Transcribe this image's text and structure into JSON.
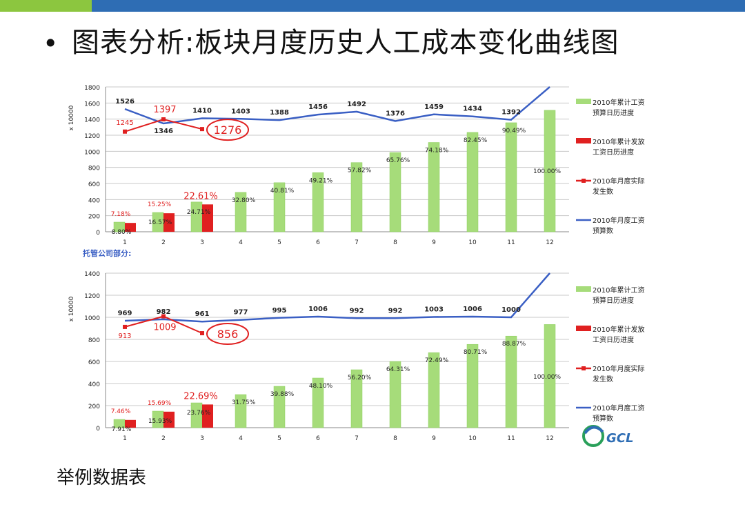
{
  "slide": {
    "bullet": "•",
    "title": "图表分析:板块月度历史人工成本变化曲线图",
    "subtitle": "举例数据表",
    "colors": {
      "top_bar_green": "#8cc63f",
      "top_bar_blue": "#2e6db4",
      "accent_red": "#e02020",
      "line_blue": "#3a5fc4",
      "bar_green": "#a6dc7a"
    }
  },
  "chart_data": [
    {
      "type": "bar",
      "title": "",
      "section_label": "",
      "ylabel": "x 10000",
      "ylim": [
        0,
        1800
      ],
      "yticks": [
        0,
        200,
        400,
        600,
        800,
        1000,
        1200,
        1400,
        1600,
        1800
      ],
      "categories": [
        "1",
        "2",
        "3",
        "4",
        "5",
        "6",
        "7",
        "8",
        "9",
        "10",
        "11",
        "12"
      ],
      "legend_position": "right",
      "series": [
        {
          "name": "2010年累计工资预算日历进度",
          "kind": "bar",
          "color": "#a6dc7a",
          "values": [
            120,
            240,
            370,
            490,
            610,
            735,
            860,
            985,
            1110,
            1235,
            1355,
            1510
          ],
          "labels": [
            "8.80%",
            "16.57%",
            "24.71%",
            "32.80%",
            "40.81%",
            "49.21%",
            "57.82%",
            "65.76%",
            "74.18%",
            "82.45%",
            "90.49%",
            "100.00%"
          ]
        },
        {
          "name": "2010年累计发放工资日历进度",
          "kind": "bar",
          "color": "#e02020",
          "values": [
            110,
            230,
            340,
            null,
            null,
            null,
            null,
            null,
            null,
            null,
            null,
            null
          ],
          "labels": [
            "7.18%",
            "15.25%",
            "22.61%",
            null,
            null,
            null,
            null,
            null,
            null,
            null,
            null,
            null
          ]
        },
        {
          "name": "2010年月度实际发生数",
          "kind": "line",
          "color": "#e02020",
          "values": [
            1245,
            1397,
            1276,
            null,
            null,
            null,
            null,
            null,
            null,
            null,
            null,
            null
          ],
          "labels": [
            "1245",
            "1397",
            "1276",
            null,
            null,
            null,
            null,
            null,
            null,
            null,
            null,
            null
          ]
        },
        {
          "name": "2010年月度工资预算数",
          "kind": "line",
          "color": "#3a5fc4",
          "values": [
            1526,
            1346,
            1410,
            1403,
            1388,
            1456,
            1492,
            1376,
            1459,
            1434,
            1392,
            1850
          ],
          "labels": [
            "1526",
            "1346",
            "1410",
            "1403",
            "1388",
            "1456",
            "1492",
            "1376",
            "1459",
            "1434",
            "1392",
            null
          ]
        }
      ]
    },
    {
      "type": "bar",
      "title": "",
      "section_label": "托管公司部分:",
      "ylabel": "x 10000",
      "ylim": [
        0,
        1400
      ],
      "yticks": [
        0,
        200,
        400,
        600,
        800,
        1000,
        1200,
        1400
      ],
      "categories": [
        "1",
        "2",
        "3",
        "4",
        "5",
        "6",
        "7",
        "8",
        "9",
        "10",
        "11",
        "12"
      ],
      "legend_position": "right",
      "series": [
        {
          "name": "2010年累计工资预算日历进度",
          "kind": "bar",
          "color": "#a6dc7a",
          "values": [
            75,
            150,
            225,
            300,
            375,
            450,
            525,
            600,
            680,
            755,
            830,
            935
          ],
          "labels": [
            "7.91%",
            "15.93%",
            "23.76%",
            "31.75%",
            "39.88%",
            "48.10%",
            "56.20%",
            "64.31%",
            "72.49%",
            "80.71%",
            "88.87%",
            "100.00%"
          ]
        },
        {
          "name": "2010年累计发放工资日历进度",
          "kind": "bar",
          "color": "#e02020",
          "values": [
            70,
            145,
            210,
            null,
            null,
            null,
            null,
            null,
            null,
            null,
            null,
            null
          ],
          "labels": [
            "7.46%",
            "15.69%",
            "22.69%",
            null,
            null,
            null,
            null,
            null,
            null,
            null,
            null,
            null
          ]
        },
        {
          "name": "2010年月度实际发生数",
          "kind": "line",
          "color": "#e02020",
          "values": [
            913,
            1009,
            856,
            null,
            null,
            null,
            null,
            null,
            null,
            null,
            null,
            null
          ],
          "labels": [
            "913",
            "1009",
            "856",
            null,
            null,
            null,
            null,
            null,
            null,
            null,
            null,
            null
          ]
        },
        {
          "name": "2010年月度工资预算数",
          "kind": "line",
          "color": "#3a5fc4",
          "values": [
            969,
            982,
            961,
            977,
            995,
            1006,
            992,
            992,
            1003,
            1006,
            1000,
            1440
          ],
          "labels": [
            "969",
            "982",
            "961",
            "977",
            "995",
            "1006",
            "992",
            "992",
            "1003",
            "1006",
            "1000",
            null
          ]
        }
      ]
    }
  ]
}
